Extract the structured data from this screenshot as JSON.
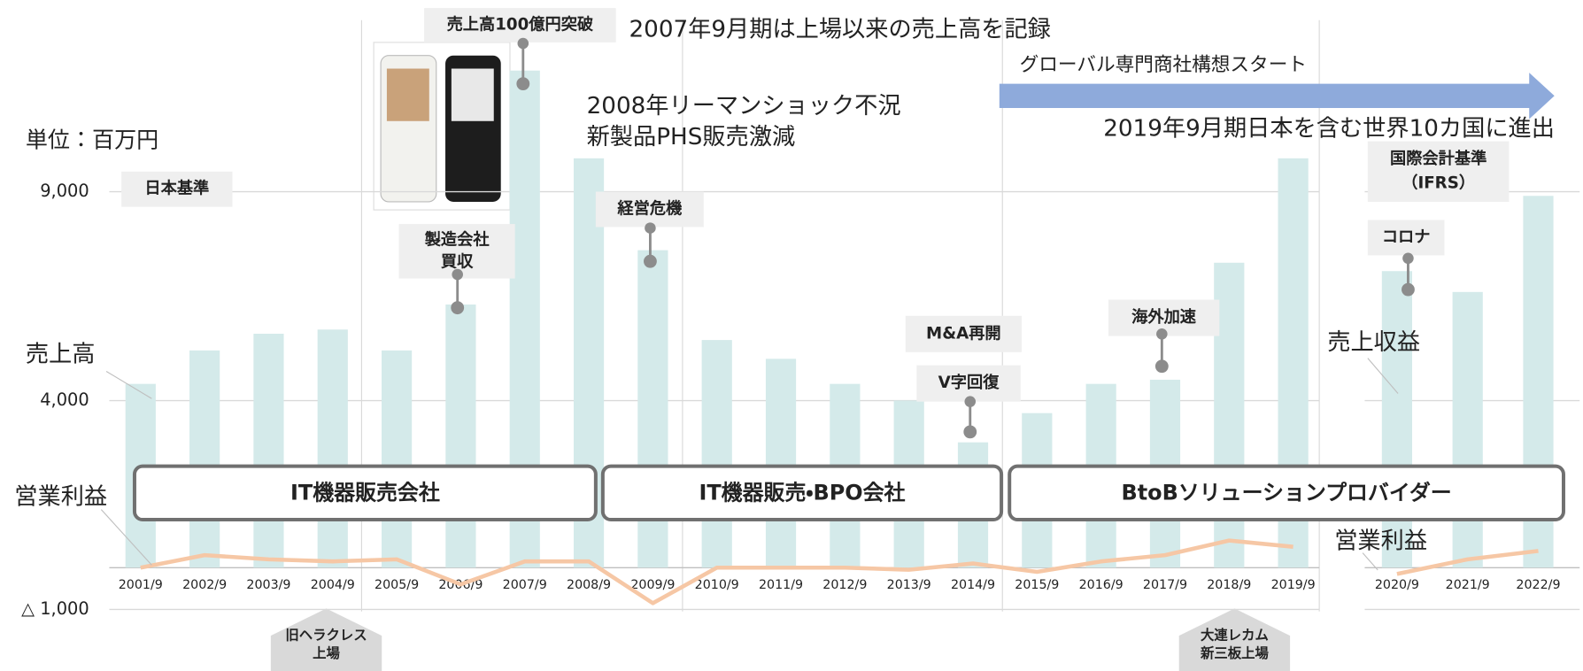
{
  "unit_label": "単位：百万円",
  "chart_data": [
    {
      "type": "bar",
      "label": [
        "日本基準"
      ],
      "categories": [
        "2001/9",
        "2002/9",
        "2003/9",
        "2004/9",
        "2005/9",
        "2006/9",
        "2007/9",
        "2008/9",
        "2009/9",
        "2010/9",
        "2011/9",
        "2012/9",
        "2013/9",
        "2014/9",
        "2015/9",
        "2016/9",
        "2017/9",
        "2018/9",
        "2019/9"
      ],
      "series": [
        {
          "name": "売上高",
          "color": "#d4eaea",
          "values": [
            4400,
            5200,
            5600,
            5700,
            5200,
            6300,
            11900,
            9800,
            7600,
            5450,
            5000,
            4400,
            4000,
            3000,
            3700,
            4400,
            4500,
            7300,
            9800
          ]
        },
        {
          "name": "営業利益",
          "type": "line",
          "color": "#f6c7a5",
          "values": [
            0,
            300,
            200,
            150,
            200,
            -400,
            150,
            150,
            -850,
            0,
            0,
            0,
            -50,
            100,
            -100,
            150,
            300,
            650,
            500
          ]
        }
      ],
      "ylim": [
        -1000,
        13000
      ],
      "yticks": [
        {
          "value": 9000,
          "label": "9,000"
        },
        {
          "value": 4000,
          "label": "4,000"
        },
        {
          "value": -1000,
          "label": "△ 1,000"
        }
      ],
      "grid": true
    },
    {
      "type": "bar",
      "label": [
        "国際会計基準",
        "（IFRS）"
      ],
      "categories": [
        "2020/9",
        "2021/9",
        "2022/9"
      ],
      "series": [
        {
          "name": "売上収益",
          "color": "#d4eaea",
          "values": [
            7100,
            6600,
            8900
          ]
        },
        {
          "name": "営業利益",
          "type": "line",
          "color": "#f6c7a5",
          "values": [
            -150,
            200,
            400
          ]
        }
      ],
      "ylim": [
        -1000,
        13000
      ],
      "grid": true
    }
  ],
  "annotations": {
    "events": [
      [
        "売上高100億円突破"
      ],
      [
        "製造会社",
        "買収"
      ],
      [
        "経営危機"
      ],
      [
        "M&A再開"
      ],
      [
        "V字回復"
      ],
      [
        "海外加速"
      ],
      [
        "コロナ"
      ]
    ],
    "notes": [
      [
        "2007年9月期は上場以来の売上高を記録"
      ],
      [
        "2008年リーマンショック不況",
        "新製品PHS販売激減"
      ],
      [
        "2019年9月期日本を含む世界10カ国に進出"
      ]
    ],
    "arrow_label": "グローバル専門商社構想スタート",
    "phases": [
      "IT機器販売会社",
      "IT機器販売・BPO会社",
      "BtoBソリューションプロバイダー"
    ],
    "listings": [
      [
        "旧ヘラクレス",
        "上場"
      ],
      [
        "大連レカム",
        "新三板上場"
      ]
    ]
  }
}
